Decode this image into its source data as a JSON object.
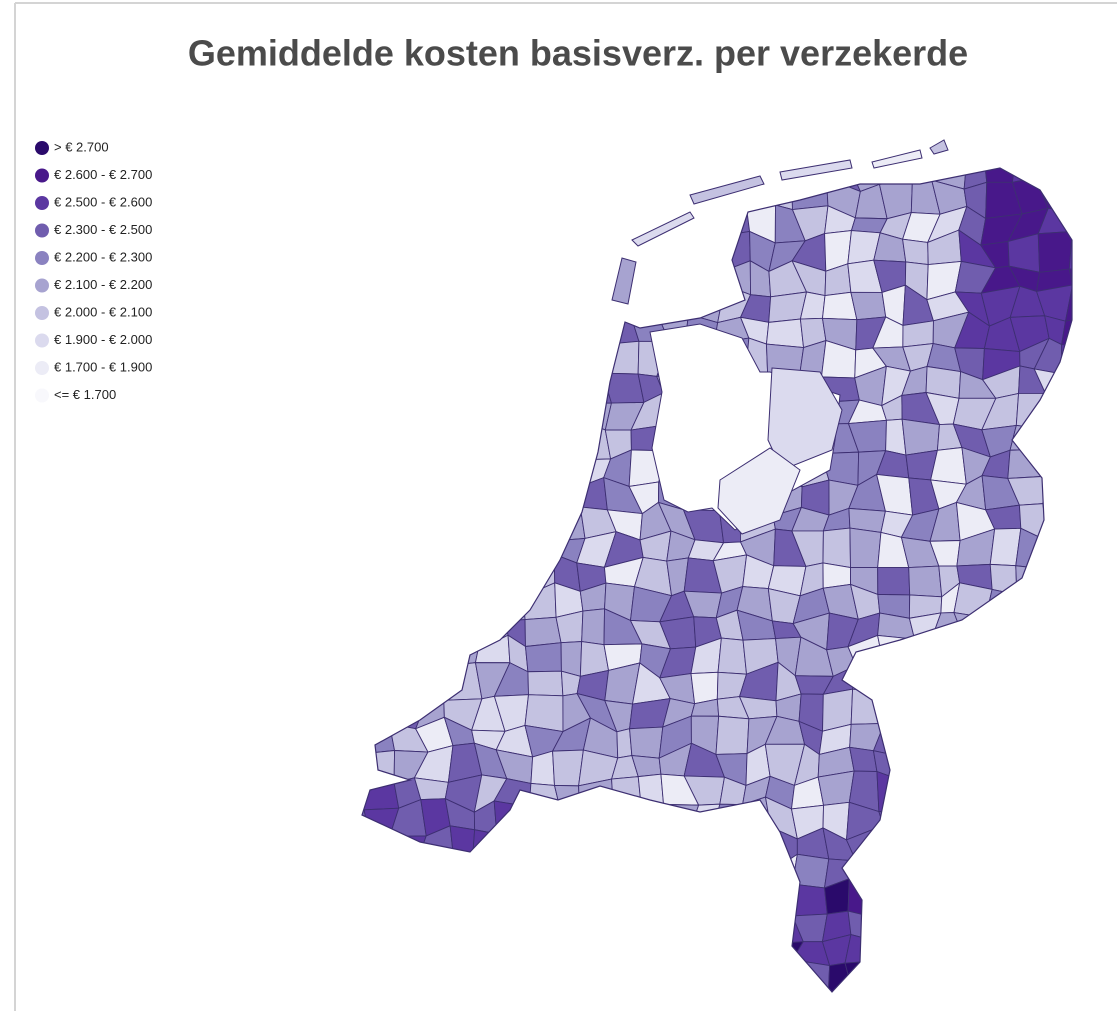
{
  "title": "Gemiddelde kosten basisverz. per verzekerde",
  "legend": {
    "items": [
      {
        "label": "> € 2.700",
        "color": "#2a0a6b"
      },
      {
        "label": "€ 2.600 - € 2.700",
        "color": "#48188a"
      },
      {
        "label": "€ 2.500 - € 2.600",
        "color": "#5b37a1"
      },
      {
        "label": "€ 2.300 - € 2.500",
        "color": "#705dae"
      },
      {
        "label": "€ 2.200 - € 2.300",
        "color": "#8a82c0"
      },
      {
        "label": "€ 2.100 - € 2.200",
        "color": "#a7a3d0"
      },
      {
        "label": "€ 2.000 - € 2.100",
        "color": "#c4c2e1"
      },
      {
        "label": "€ 1.900 - € 2.000",
        "color": "#dbdaee"
      },
      {
        "label": "€ 1.700 - € 1.900",
        "color": "#ececf6"
      },
      {
        "label": "<= € 1.700",
        "color": "#f8f8fc"
      }
    ]
  }
}
